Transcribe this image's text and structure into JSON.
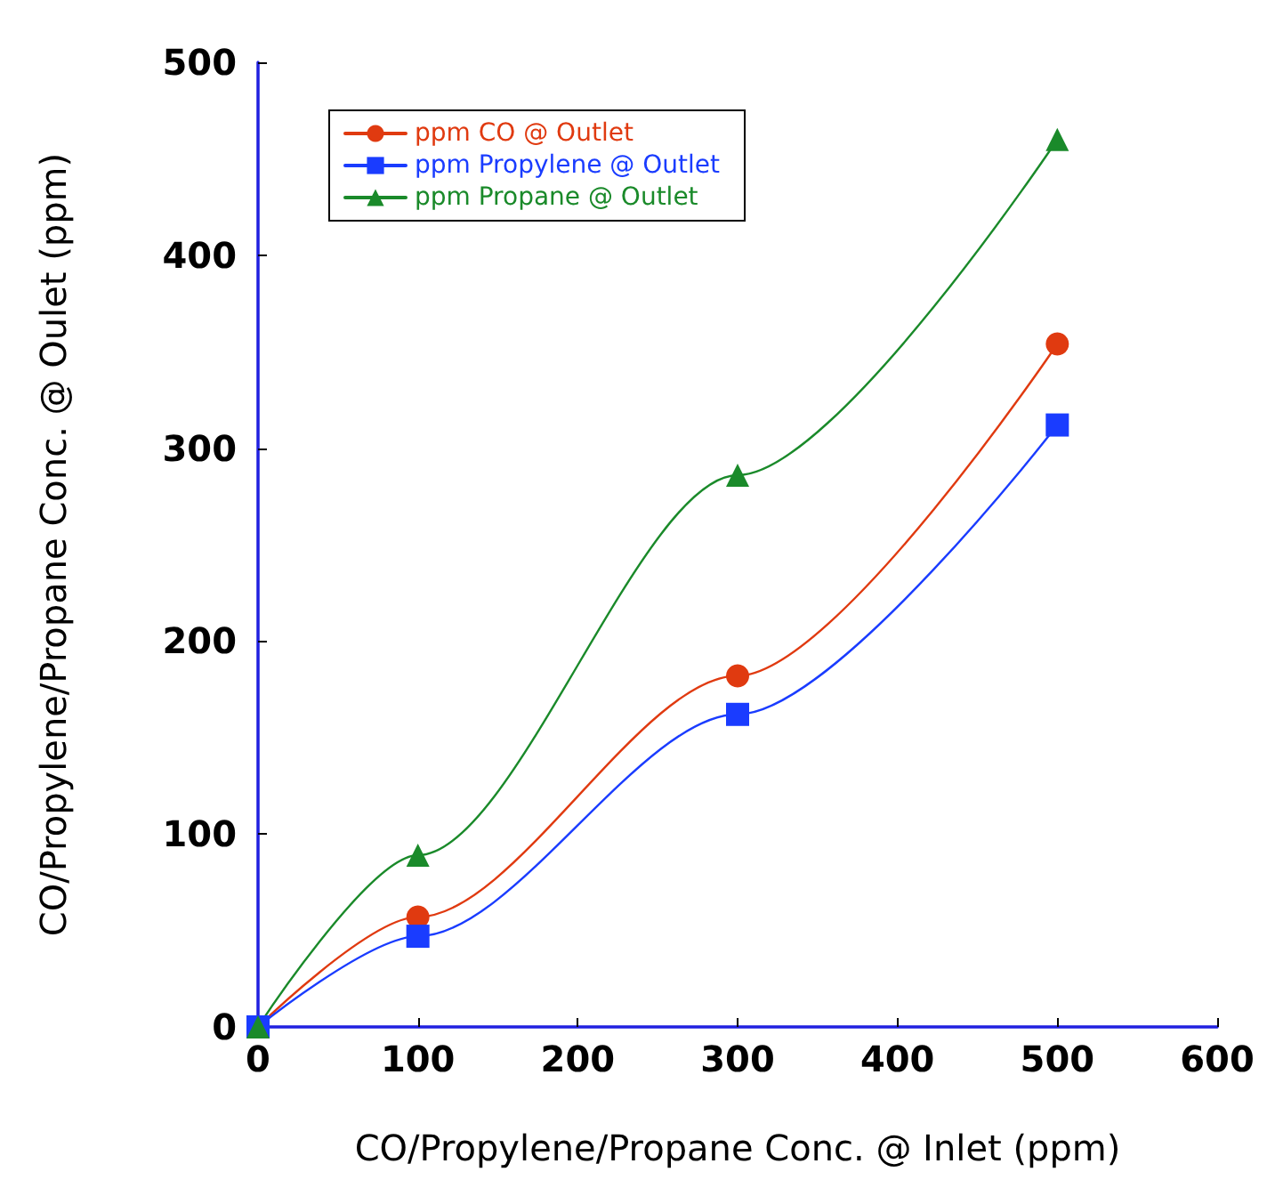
{
  "chart_data": {
    "type": "line",
    "xlabel": "CO/Propylene/Propane Conc. @ Inlet (ppm)",
    "ylabel": "CO/Propylene/Propane Conc. @ Oulet (ppm)",
    "x": [
      0,
      100,
      300,
      500
    ],
    "series": [
      {
        "name": "ppm CO @ Outlet",
        "color": "#e03a10",
        "marker": "circle",
        "values": [
          0,
          57,
          182,
          354
        ]
      },
      {
        "name": "ppm Propylene @ Outlet",
        "color": "#1a3cff",
        "marker": "square",
        "values": [
          0,
          47,
          162,
          312
        ]
      },
      {
        "name": "ppm Propane @ Outlet",
        "color": "#1a8a2a",
        "marker": "triangle",
        "values": [
          0,
          89,
          286,
          460
        ]
      }
    ],
    "xlim": [
      0,
      600
    ],
    "xticks": [
      0,
      100,
      200,
      300,
      400,
      500,
      600
    ],
    "ylim": [
      0,
      500
    ],
    "yticks": [
      0,
      100,
      200,
      300,
      400,
      500
    ],
    "grid": false,
    "legend": "top left",
    "line_style": "solid"
  }
}
